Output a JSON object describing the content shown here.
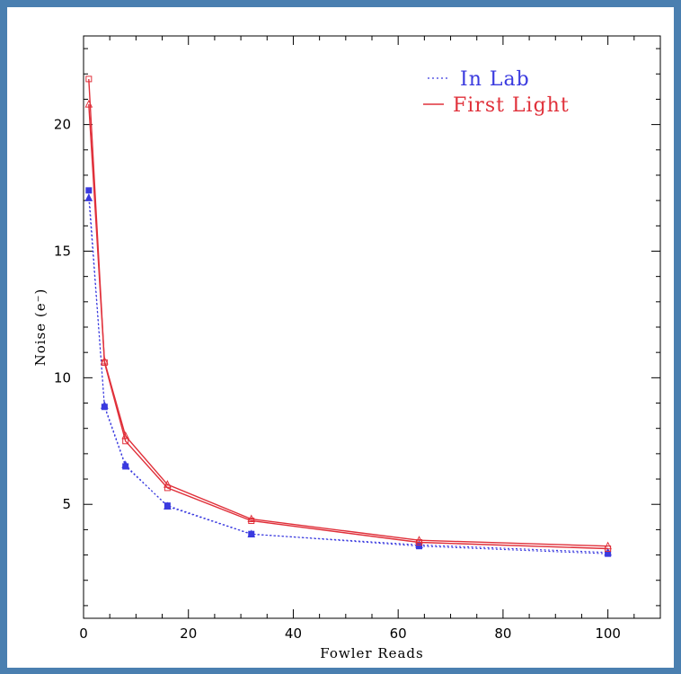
{
  "colors": {
    "frame_border": "#4a7fb0",
    "background": "#ffffff",
    "lab": "#3a3adf",
    "first_light": "#e0303a"
  },
  "chart_data": {
    "type": "line",
    "xlabel": "Fowler Reads",
    "ylabel": "Noise (e⁻)",
    "xlim": [
      0,
      110
    ],
    "ylim": [
      0.5,
      23.5
    ],
    "xticks": [
      0,
      20,
      40,
      60,
      80,
      100
    ],
    "yticks": [
      5,
      10,
      15,
      20
    ],
    "grid": false,
    "legend_position": "top-right",
    "x": [
      1,
      4,
      8,
      16,
      32,
      64,
      100
    ],
    "series": [
      {
        "name": "In Lab",
        "style": "dotted",
        "color": "#3a3adf",
        "marker": "square",
        "values": [
          17.4,
          8.85,
          6.5,
          4.95,
          3.83,
          3.35,
          3.05
        ]
      },
      {
        "name": "",
        "style": "dotted",
        "color": "#3a3adf",
        "marker": "triangle",
        "values": [
          17.1,
          8.9,
          6.55,
          4.92,
          3.82,
          3.4,
          3.1
        ]
      },
      {
        "name": "First Light",
        "style": "solid",
        "color": "#e0303a",
        "marker": "square",
        "values": [
          21.8,
          10.6,
          7.5,
          5.65,
          4.35,
          3.5,
          3.25
        ]
      },
      {
        "name": "",
        "style": "solid",
        "color": "#e0303a",
        "marker": "triangle",
        "values": [
          20.8,
          10.65,
          7.7,
          5.78,
          4.42,
          3.58,
          3.35
        ]
      }
    ]
  }
}
